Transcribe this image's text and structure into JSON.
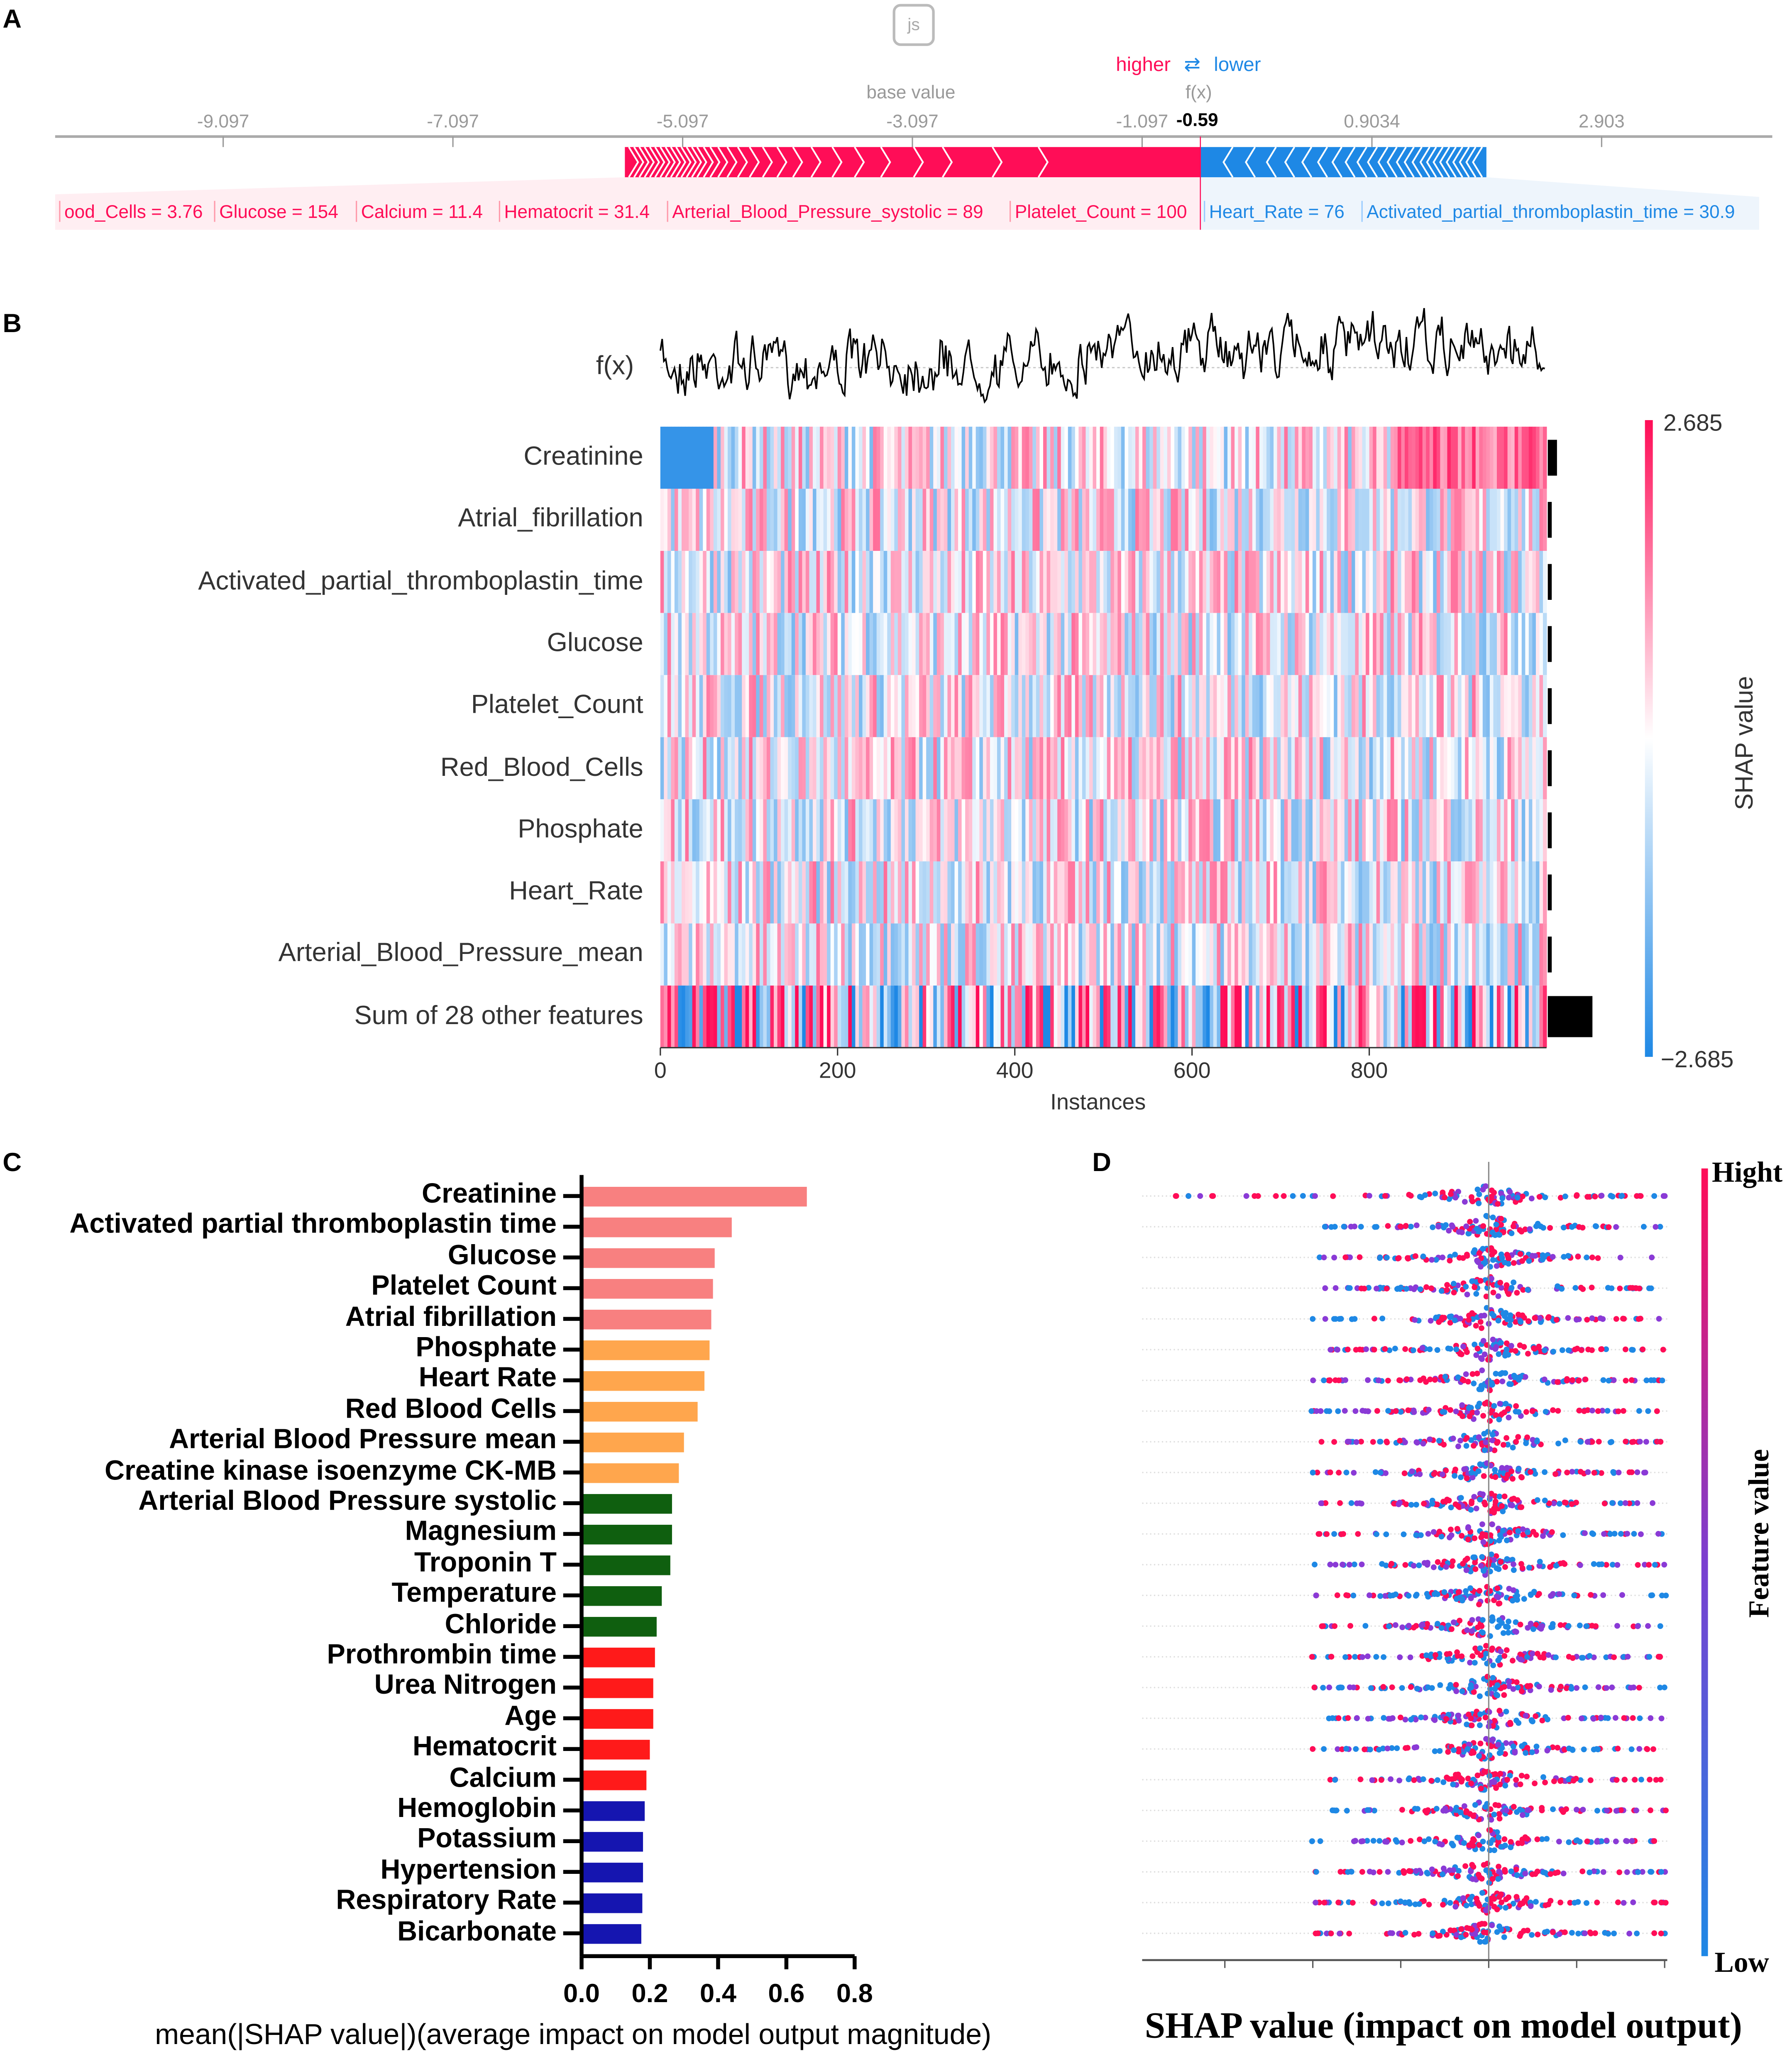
{
  "panel_labels": [
    "A",
    "B",
    "C",
    "D"
  ],
  "chart_data": [
    {
      "type": "force",
      "panel": "A",
      "legend": {
        "higher": "higher",
        "arrows": "⇄",
        "lower": "lower"
      },
      "base_value_label": "base value",
      "fx_label": "f(x)",
      "fx_value": "-0.59",
      "fx_numeric": -0.59,
      "base_value": -3.097,
      "ticks": [
        "-9.097",
        "-7.097",
        "-5.097",
        "-3.097",
        "-1.097",
        "0.9034",
        "2.903"
      ],
      "tick_values": [
        -9.097,
        -7.097,
        -5.097,
        -3.097,
        -1.097,
        0.9034,
        2.903
      ],
      "bar_range": [
        -5.6,
        1.9
      ],
      "positive_features": [
        "ood_Cells = 3.76",
        "Glucose = 154",
        "Calcium = 11.4",
        "Hematocrit = 31.4",
        "Arterial_Blood_Pressure_systolic = 89",
        "Platelet_Count = 100"
      ],
      "negative_features": [
        "Heart_Rate = 76",
        "Activated_partial_thromboplastin_time = 30.9"
      ],
      "colors": {
        "pos": "#ff0d57",
        "neg": "#1e88e5"
      }
    },
    {
      "type": "heatmap",
      "panel": "B",
      "fx_label": "f(x)",
      "rows": [
        "Creatinine",
        "Atrial_fibrillation",
        "Activated_partial_thromboplastin_time",
        "Glucose",
        "Platelet_Count",
        "Red_Blood_Cells",
        "Phosphate",
        "Heart_Rate",
        "Arterial_Blood_Pressure_mean",
        "Sum of 28 other features"
      ],
      "xlabel": "Instances",
      "xticks": [
        "0",
        "200",
        "400",
        "600",
        "800"
      ],
      "xtick_values": [
        0,
        200,
        400,
        600,
        800
      ],
      "n_instances": 1000,
      "colorbar": {
        "label": "SHAP value",
        "max": "2.685",
        "min": "−2.685"
      }
    },
    {
      "type": "bar",
      "panel": "C",
      "categories": [
        "Creatinine",
        "Activated partial thromboplastin time",
        "Glucose",
        "Platelet Count",
        "Atrial fibrillation",
        "Phosphate",
        "Heart Rate",
        "Red Blood Cells",
        "Arterial Blood Pressure mean",
        "Creatine kinase isoenzyme CK-MB",
        "Arterial Blood Pressure systolic",
        "Magnesium",
        "Troponin T",
        "Temperature",
        "Chloride",
        "Prothrombin time",
        "Urea Nitrogen",
        "Age",
        "Hematocrit",
        "Calcium",
        "Hemoglobin",
        "Potassium",
        "Hypertension",
        "Respiratory Rate",
        "Bicarbonate"
      ],
      "values": [
        0.66,
        0.44,
        0.39,
        0.385,
        0.38,
        0.375,
        0.36,
        0.34,
        0.3,
        0.285,
        0.265,
        0.265,
        0.26,
        0.235,
        0.22,
        0.215,
        0.21,
        0.21,
        0.2,
        0.19,
        0.185,
        0.18,
        0.18,
        0.178,
        0.175
      ],
      "groups": [
        0,
        0,
        0,
        0,
        0,
        1,
        1,
        1,
        1,
        1,
        2,
        2,
        2,
        2,
        2,
        3,
        3,
        3,
        3,
        3,
        4,
        4,
        4,
        4,
        4
      ],
      "group_colors": [
        "#f88080",
        "#ffa64d",
        "#0f5f0f",
        "#ff1a1a",
        "#1515b0"
      ],
      "xticks": [
        "0.0",
        "0.2",
        "0.4",
        "0.6",
        "0.8"
      ],
      "xlim": [
        0,
        0.8
      ],
      "xlabel": "mean(|SHAP value|)(average impact on model output magnitude)"
    },
    {
      "type": "scatter",
      "panel": "D",
      "rows": 25,
      "xlabel": "SHAP value (impact on model output)",
      "colorbar": {
        "label": "Feature value",
        "high": "Hight",
        "low": "Low"
      }
    }
  ]
}
